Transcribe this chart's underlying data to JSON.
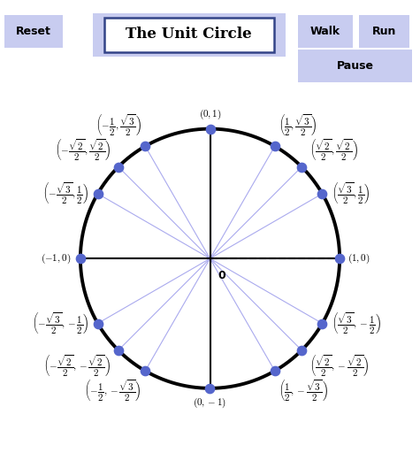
{
  "title": "The Unit Circle",
  "bg_color": "#ffffff",
  "circle_color": "#000000",
  "circle_lw": 2.8,
  "axis_color": "#000000",
  "ray_color": "#aaaaee",
  "point_color": "#5566cc",
  "point_size": 55,
  "button_bg": "#ccd0ee",
  "title_box_bg": "#dde0ff",
  "title_box_border": "#8899bb",
  "xlim": [
    -1.62,
    1.62
  ],
  "ylim": [
    -1.38,
    1.42
  ],
  "label_fs": 8.0,
  "angles": [
    0,
    30,
    45,
    60,
    90,
    120,
    135,
    150,
    180,
    210,
    225,
    240,
    270,
    300,
    315,
    330
  ]
}
